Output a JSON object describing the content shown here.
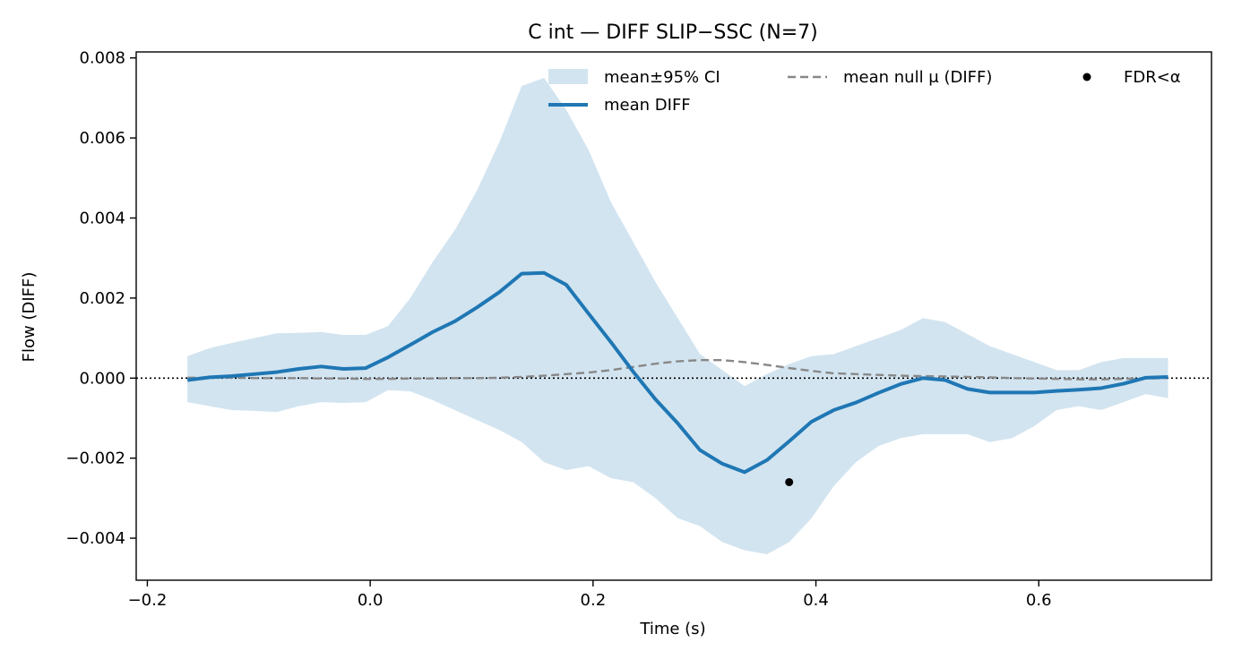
{
  "chart_data": {
    "type": "line",
    "title": "C int — DIFF SLIP−SSC (N=7)",
    "xlabel": "Time (s)",
    "ylabel": "Flow (DIFF)",
    "xlim": [
      -0.21,
      0.755
    ],
    "ylim": [
      -0.00505,
      0.00815
    ],
    "xticks": [
      -0.2,
      0.0,
      0.2,
      0.4,
      0.6
    ],
    "xtick_labels": [
      "−0.2",
      "0.0",
      "0.2",
      "0.4",
      "0.6"
    ],
    "yticks": [
      -0.004,
      -0.002,
      0.0,
      0.002,
      0.004,
      0.006,
      0.008
    ],
    "ytick_labels": [
      "−0.004",
      "−0.002",
      "0.000",
      "0.002",
      "0.004",
      "0.006",
      "0.008"
    ],
    "grid": false,
    "legend_position": "top-right",
    "colors": {
      "mean": "#1f77b4",
      "ci_fill": "#1f77b4",
      "null": "#888888",
      "fdr": "#000000"
    },
    "x": [
      -0.164,
      -0.144,
      -0.124,
      -0.104,
      -0.084,
      -0.064,
      -0.044,
      -0.024,
      -0.004,
      0.016,
      0.036,
      0.056,
      0.076,
      0.096,
      0.116,
      0.136,
      0.156,
      0.176,
      0.196,
      0.216,
      0.236,
      0.256,
      0.276,
      0.296,
      0.316,
      0.336,
      0.356,
      0.376,
      0.396,
      0.416,
      0.436,
      0.456,
      0.476,
      0.496,
      0.516,
      0.536,
      0.556,
      0.576,
      0.596,
      0.616,
      0.636,
      0.656,
      0.676,
      0.696,
      0.716
    ],
    "series": [
      {
        "name": "mean DIFF",
        "kind": "line",
        "values": [
          -5e-05,
          2e-05,
          5e-05,
          0.0001,
          0.00015,
          0.00023,
          0.00029,
          0.00023,
          0.00025,
          0.00052,
          0.00083,
          0.00115,
          0.00142,
          0.00177,
          0.00215,
          0.00261,
          0.00263,
          0.00233,
          0.00161,
          0.0009,
          0.00016,
          -0.00053,
          -0.00113,
          -0.0018,
          -0.00214,
          -0.00235,
          -0.00205,
          -0.00158,
          -0.00109,
          -0.0008,
          -0.00061,
          -0.00037,
          -0.00015,
          0.0,
          -5e-05,
          -0.00027,
          -0.00036,
          -0.00036,
          -0.00036,
          -0.00032,
          -0.00029,
          -0.00025,
          -0.00014,
          1e-05,
          3e-05
        ]
      },
      {
        "name": "mean±95% CI",
        "kind": "band",
        "lower": [
          -0.0006,
          -0.0007,
          -0.0008,
          -0.00082,
          -0.00085,
          -0.0007,
          -0.0006,
          -0.00062,
          -0.0006,
          -0.0003,
          -0.00033,
          -0.00055,
          -0.0008,
          -0.00105,
          -0.0013,
          -0.0016,
          -0.0021,
          -0.0023,
          -0.0022,
          -0.0025,
          -0.0026,
          -0.003,
          -0.0035,
          -0.0037,
          -0.0041,
          -0.0043,
          -0.0044,
          -0.0041,
          -0.0035,
          -0.0027,
          -0.0021,
          -0.0017,
          -0.0015,
          -0.0014,
          -0.0014,
          -0.0014,
          -0.0016,
          -0.0015,
          -0.0012,
          -0.0008,
          -0.0007,
          -0.0008,
          -0.0006,
          -0.0004,
          -0.0005
        ],
        "upper": [
          0.00055,
          0.00075,
          0.00088,
          0.001,
          0.00112,
          0.00113,
          0.00115,
          0.00108,
          0.00108,
          0.0013,
          0.002,
          0.0029,
          0.0037,
          0.0047,
          0.0059,
          0.0073,
          0.0075,
          0.0067,
          0.0057,
          0.0044,
          0.0034,
          0.0024,
          0.0015,
          0.0006,
          0.0002,
          -0.0002,
          0.0001,
          0.00035,
          0.00055,
          0.0006,
          0.0008,
          0.001,
          0.0012,
          0.0015,
          0.0014,
          0.0011,
          0.0008,
          0.0006,
          0.0004,
          0.0002,
          0.0002,
          0.0004,
          0.0005,
          0.0005,
          0.0005
        ]
      },
      {
        "name": "mean null μ (DIFF)",
        "kind": "dashed",
        "values": [
          1e-05,
          1e-05,
          1e-05,
          0.0,
          0.0,
          0.0,
          -1e-05,
          -1e-05,
          -2e-05,
          -2e-05,
          -1e-05,
          -1e-05,
          0.0,
          0.0,
          1e-05,
          3e-05,
          6e-05,
          0.0001,
          0.00014,
          0.0002,
          0.00028,
          0.00036,
          0.00042,
          0.00045,
          0.00045,
          0.0004,
          0.00033,
          0.00025,
          0.00018,
          0.00012,
          0.0001,
          8e-05,
          6e-05,
          5e-05,
          4e-05,
          3e-05,
          2e-05,
          0.0,
          -1e-05,
          -2e-05,
          -3e-05,
          -3e-05,
          -2e-05,
          -1e-05,
          0.0
        ]
      },
      {
        "name": "FDR<α",
        "kind": "scatter",
        "points": [
          {
            "x": 0.376,
            "y": -0.0026
          }
        ]
      }
    ],
    "reference_line": {
      "y": 0.0,
      "style": "dotted"
    }
  }
}
